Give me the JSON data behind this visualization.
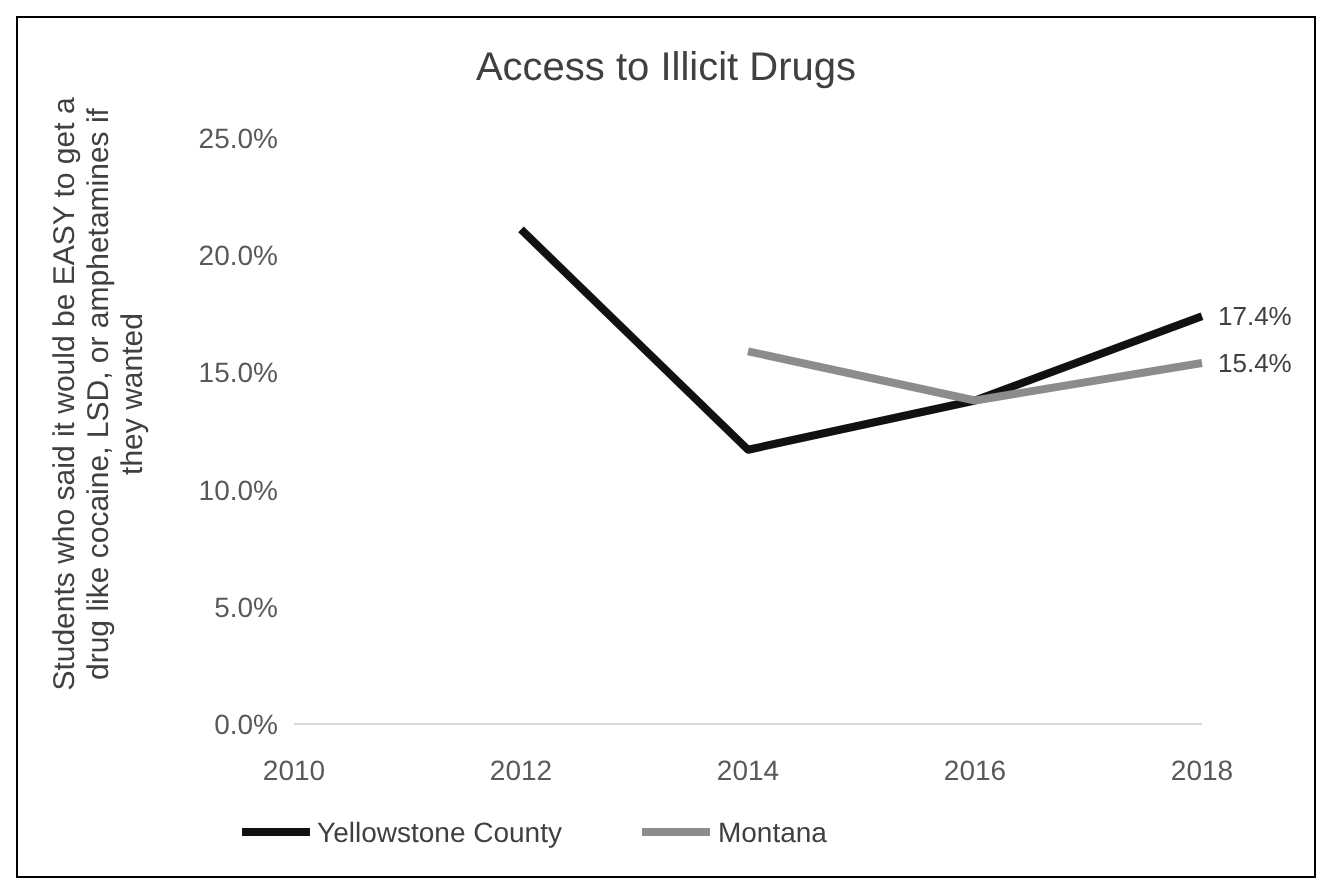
{
  "chart_data": {
    "type": "line",
    "title": "Access to Illicit Drugs",
    "ylabel": "Students who said it would be EASY to get a drug like cocaine, LSD, or amphetamines if they wanted",
    "categories": [
      "2010",
      "2012",
      "2014",
      "2016",
      "2018"
    ],
    "series": [
      {
        "name": "Yellowstone County",
        "color": "#111111",
        "values": [
          null,
          21.1,
          11.7,
          13.8,
          17.4
        ],
        "value_labels": [
          null,
          null,
          null,
          null,
          "17.4%"
        ]
      },
      {
        "name": "Montana",
        "color": "#8c8c8c",
        "values": [
          null,
          null,
          15.9,
          13.8,
          15.4
        ],
        "value_labels": [
          null,
          null,
          null,
          null,
          "15.4%"
        ]
      }
    ],
    "ylim": [
      0,
      25
    ],
    "yticks": [
      {
        "value": 0,
        "label": "0.0%"
      },
      {
        "value": 5,
        "label": "5.0%"
      },
      {
        "value": 10,
        "label": "10.0%"
      },
      {
        "value": 15,
        "label": "15.0%"
      },
      {
        "value": 20,
        "label": "20.0%"
      },
      {
        "value": 25,
        "label": "25.0%"
      }
    ],
    "grid": false,
    "legend": "bottom",
    "marker": "none",
    "line_style": "solid"
  }
}
